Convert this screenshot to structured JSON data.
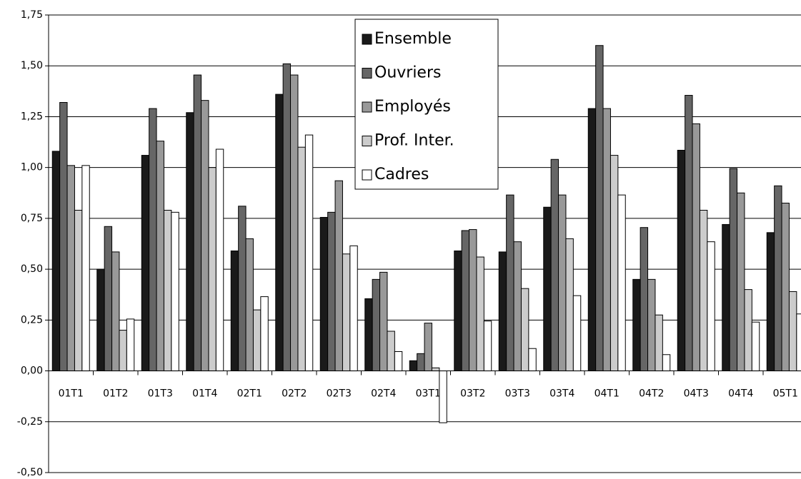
{
  "chart_data": {
    "type": "bar",
    "categories": [
      "01T1",
      "01T2",
      "01T3",
      "01T4",
      "02T1",
      "02T2",
      "02T3",
      "02T4",
      "03T1",
      "03T2",
      "03T3",
      "03T4",
      "04T1",
      "04T2",
      "04T3",
      "04T4",
      "05T1"
    ],
    "series": [
      {
        "name": "Ensemble",
        "color": "#1a1a1a",
        "values": [
          1.08,
          0.5,
          1.06,
          1.27,
          0.59,
          1.36,
          0.755,
          0.355,
          0.05,
          0.59,
          0.585,
          0.805,
          1.29,
          0.45,
          1.085,
          0.72,
          0.68
        ]
      },
      {
        "name": "Ouvriers",
        "color": "#666666",
        "values": [
          1.32,
          0.71,
          1.29,
          1.455,
          0.81,
          1.51,
          0.78,
          0.45,
          0.085,
          0.69,
          0.865,
          1.04,
          1.6,
          0.705,
          1.355,
          0.995,
          0.91
        ]
      },
      {
        "name": "Employés",
        "color": "#999999",
        "values": [
          1.01,
          0.585,
          1.13,
          1.33,
          0.65,
          1.455,
          0.935,
          0.485,
          0.235,
          0.695,
          0.635,
          0.865,
          1.29,
          0.45,
          1.215,
          0.875,
          0.825
        ]
      },
      {
        "name": "Prof. Inter.",
        "color": "#cccccc",
        "values": [
          0.79,
          0.2,
          0.79,
          1.0,
          0.3,
          1.1,
          0.575,
          0.195,
          0.015,
          0.56,
          0.405,
          0.65,
          1.06,
          0.275,
          0.79,
          0.4,
          0.39
        ]
      },
      {
        "name": "Cadres",
        "color": "#ffffff",
        "values": [
          1.01,
          0.255,
          0.78,
          1.09,
          0.365,
          1.16,
          0.615,
          0.095,
          -0.255,
          0.245,
          0.11,
          0.37,
          0.865,
          0.08,
          0.635,
          0.24,
          0.28
        ]
      }
    ],
    "ylim": [
      -0.5,
      1.75
    ],
    "yticks": [
      {
        "value": -0.5,
        "label": "-0,50"
      },
      {
        "value": -0.25,
        "label": "-0,25"
      },
      {
        "value": 0,
        "label": "0,00"
      },
      {
        "value": 0.25,
        "label": "0,25"
      },
      {
        "value": 0.5,
        "label": "0,50"
      },
      {
        "value": 0.75,
        "label": "0,75"
      },
      {
        "value": 1,
        "label": "1,00"
      },
      {
        "value": 1.25,
        "label": "1,25"
      },
      {
        "value": 1.5,
        "label": "1,50"
      },
      {
        "value": 1.75,
        "label": "1,75"
      }
    ],
    "grid": true
  }
}
